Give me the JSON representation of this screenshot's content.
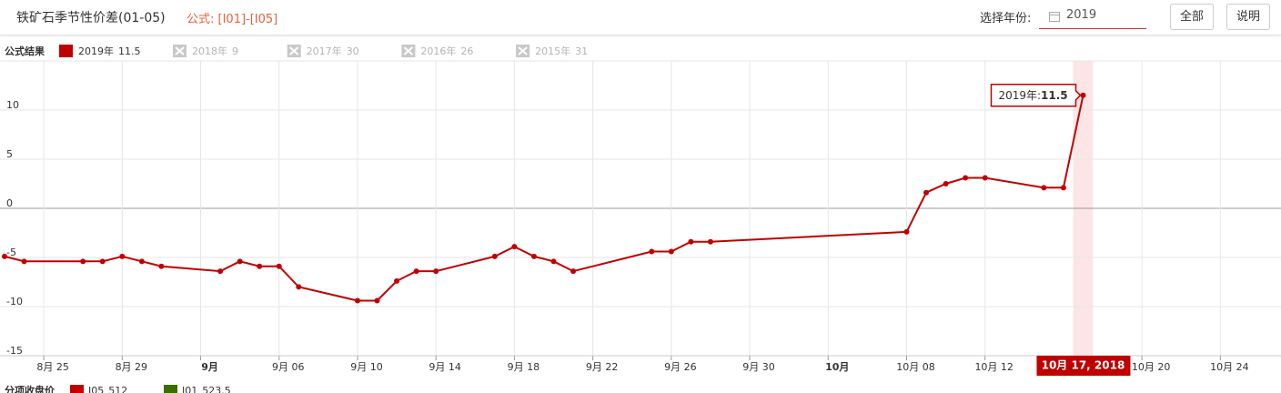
{
  "header": {
    "title": "铁矿石季节性价差(01-05)",
    "formula": "公式: [I01]-[I05]",
    "year_label": "选择年份:",
    "year_value": "2019",
    "buttons": [
      "全部",
      "说明"
    ]
  },
  "chart_data": {
    "type": "line",
    "legend_title": "公式结果",
    "x": [
      "2018-08-23",
      "2018-08-24",
      "2018-08-27",
      "2018-08-28",
      "2018-08-29",
      "2018-08-30",
      "2018-08-31",
      "2018-09-03",
      "2018-09-04",
      "2018-09-05",
      "2018-09-06",
      "2018-09-07",
      "2018-09-10",
      "2018-09-11",
      "2018-09-12",
      "2018-09-13",
      "2018-09-14",
      "2018-09-17",
      "2018-09-18",
      "2018-09-19",
      "2018-09-20",
      "2018-09-21",
      "2018-09-25",
      "2018-09-26",
      "2018-09-27",
      "2018-09-28",
      "2018-10-08",
      "2018-10-09",
      "2018-10-10",
      "2018-10-11",
      "2018-10-12",
      "2018-10-15",
      "2018-10-16",
      "2018-10-17"
    ],
    "series": [
      {
        "name": "2019年",
        "color": "#c00000",
        "values": [
          -4.9,
          -5.4,
          -5.4,
          -5.4,
          -4.9,
          -5.4,
          -5.9,
          -6.4,
          -5.4,
          -5.9,
          -5.9,
          -8.0,
          -9.4,
          -9.4,
          -7.4,
          -6.4,
          -6.4,
          -4.9,
          -3.9,
          -4.9,
          -5.4,
          -6.4,
          -4.4,
          -4.4,
          -3.4,
          -3.4,
          -2.4,
          1.6,
          2.5,
          3.1,
          3.1,
          2.1,
          2.1,
          11.5
        ]
      }
    ],
    "hidden_series": [
      {
        "name": "2018年",
        "value": 9
      },
      {
        "name": "2017年",
        "value": 30
      },
      {
        "name": "2016年",
        "value": 26
      },
      {
        "name": "2015年",
        "value": 31
      }
    ],
    "xlim": [
      "2018-08-23",
      "2018-10-27"
    ],
    "xticks": [
      {
        "value": "2018-08-25",
        "label": "8月 25"
      },
      {
        "value": "2018-08-29",
        "label": "8月 29"
      },
      {
        "value": "2018-09-02",
        "label": "9月",
        "bold": true
      },
      {
        "value": "2018-09-06",
        "label": "9月 06"
      },
      {
        "value": "2018-09-10",
        "label": "9月 10"
      },
      {
        "value": "2018-09-14",
        "label": "9月 14"
      },
      {
        "value": "2018-09-18",
        "label": "9月 18"
      },
      {
        "value": "2018-09-22",
        "label": "9月 22"
      },
      {
        "value": "2018-09-26",
        "label": "9月 26"
      },
      {
        "value": "2018-09-30",
        "label": "9月 30"
      },
      {
        "value": "2018-10-04",
        "label": "10月",
        "bold": true
      },
      {
        "value": "2018-10-08",
        "label": "10月 08"
      },
      {
        "value": "2018-10-12",
        "label": "10月 12"
      },
      {
        "value": "2018-10-20",
        "label": "10月 20"
      },
      {
        "value": "2018-10-24",
        "label": "10月 24"
      }
    ],
    "ylim": [
      -15,
      15
    ],
    "yticks": [
      -15,
      -10,
      -5,
      0,
      5,
      10
    ],
    "grid": true,
    "tooltip_label": "2019年:",
    "crosshair_label": "10月 17, 2018",
    "sub_legend": {
      "title": "分项收盘价",
      "items": [
        {
          "name": "I05",
          "value": 512,
          "color": "#c00000"
        },
        {
          "name": "I01",
          "value": 523.5,
          "color": "#3a6e00"
        }
      ]
    }
  }
}
